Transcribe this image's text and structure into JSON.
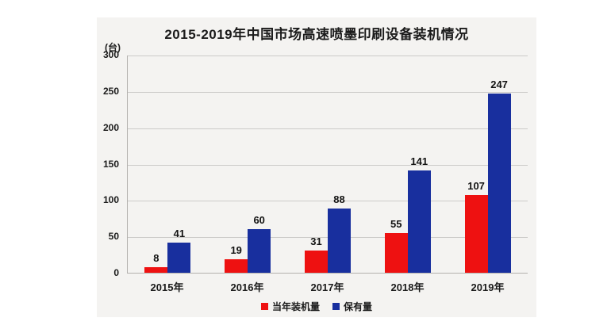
{
  "chart_data": {
    "type": "bar",
    "title": "2015-2019年中国市场高速喷墨印刷设备装机情况",
    "unit": "(台)",
    "categories": [
      "2015年",
      "2016年",
      "2017年",
      "2018年",
      "2019年"
    ],
    "series": [
      {
        "name": "当年装机量",
        "color": "#ee1111",
        "values": [
          8,
          19,
          31,
          55,
          107
        ]
      },
      {
        "name": "保有量",
        "color": "#182f9e",
        "values": [
          41,
          60,
          88,
          141,
          247
        ]
      }
    ],
    "ylim": [
      0,
      300
    ],
    "yticks": [
      300,
      250,
      200,
      150,
      100,
      50,
      0
    ],
    "grid": true,
    "legend_position": "bottom",
    "panel_bg": "#f4f3f1",
    "page_bg": "#ffffff",
    "text_color": "#1b1b1b"
  }
}
